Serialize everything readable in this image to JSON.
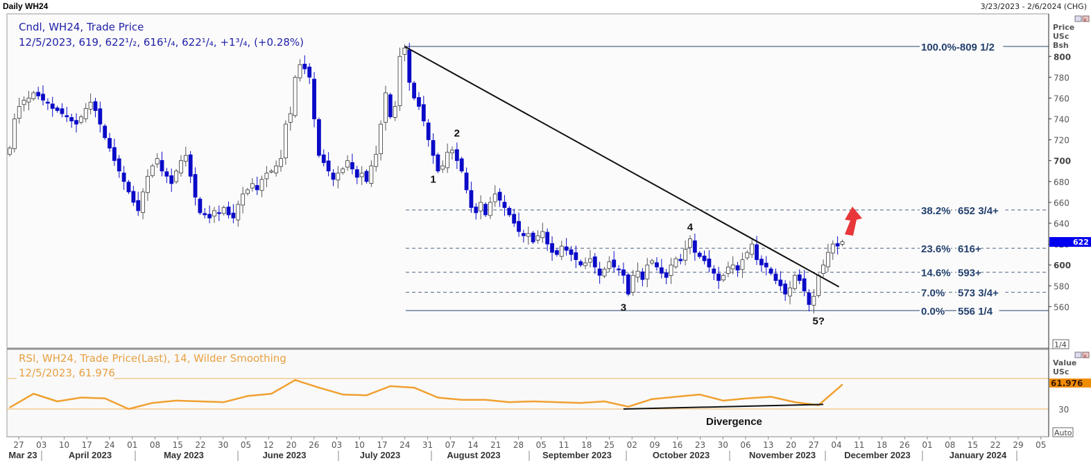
{
  "header": {
    "title": "Daily WH24",
    "range": "3/23/2023 - 2/6/2024 (CHG)"
  },
  "price_panel": {
    "legend_line1": "Cndl, WH24, Trade Price",
    "legend_line2": "12/5/2023, 619, 622¹/₂, 616¹/₄, 622¹/₄, +1³/₄, (+0.28%)",
    "axis_title": [
      "Price",
      "USc",
      "Bsh"
    ],
    "current_price_label": "622",
    "scale_button": "1/4",
    "colors": {
      "up_body": "#ffffff",
      "down_body": "#0a0ac8",
      "current_price": "#0000ee",
      "fib": "#23406e"
    }
  },
  "rsi_panel": {
    "legend_line1": "RSI, WH24, Trade Price(Last),  14, Wilder Smoothing",
    "legend_line2": "12/5/2023, 61.976",
    "axis_title": [
      "Value",
      "USc"
    ],
    "current_value_label": "61.976",
    "tick_30": "30",
    "auto_button": "Auto",
    "divergence_label": "Divergence",
    "colors": {
      "line": "#f0a030",
      "bands": "#f3c27a",
      "value_box": "#f08c00"
    }
  },
  "chart_data": [
    {
      "type": "candlestick",
      "title": "Cndl, WH24, Trade Price",
      "x_range": [
        "3/23/2023",
        "2/6/2024"
      ],
      "ylabel": "Price USc Bsh",
      "ylim": [
        540,
        815
      ],
      "y_ticks": [
        800,
        780,
        760,
        740,
        720,
        700,
        680,
        660,
        640,
        620,
        600,
        580,
        560
      ],
      "closes": [
        712,
        740,
        752,
        758,
        760,
        765,
        762,
        758,
        755,
        750,
        748,
        745,
        742,
        738,
        735,
        742,
        750,
        756,
        748,
        735,
        722,
        712,
        700,
        690,
        680,
        670,
        660,
        652,
        670,
        685,
        695,
        702,
        690,
        685,
        678,
        690,
        700,
        705,
        685,
        665,
        650,
        648,
        645,
        652,
        650,
        655,
        648,
        645,
        658,
        668,
        672,
        678,
        672,
        682,
        688,
        690,
        695,
        702,
        735,
        745,
        780,
        792,
        788,
        780,
        740,
        705,
        698,
        690,
        682,
        688,
        692,
        700,
        692,
        684,
        688,
        680,
        695,
        706,
        735,
        765,
        742,
        752,
        800,
        808,
        775,
        760,
        752,
        738,
        720,
        705,
        690,
        695,
        708,
        710,
        700,
        690,
        672,
        655,
        650,
        660,
        648,
        660,
        668,
        662,
        655,
        648,
        640,
        632,
        628,
        630,
        622,
        628,
        632,
        620,
        612,
        610,
        618,
        614,
        610,
        605,
        600,
        602,
        606,
        598,
        590,
        596,
        603,
        598,
        596,
        590,
        572,
        590,
        594,
        586,
        600,
        604,
        598,
        592,
        588,
        600,
        606,
        604,
        615,
        625,
        612,
        608,
        604,
        598,
        592,
        585,
        590,
        598,
        600,
        595,
        605,
        612,
        620,
        605,
        600,
        598,
        592,
        585,
        580,
        572,
        578,
        590,
        585,
        575,
        562,
        570,
        590,
        600,
        612,
        620,
        618,
        622.25
      ],
      "fibonacci": [
        {
          "pct": "100.0%",
          "label": "809 1/2",
          "value": 809.5,
          "style": "solid"
        },
        {
          "pct": "38.2%",
          "label": "652 3/4+",
          "value": 652.75,
          "style": "dashed"
        },
        {
          "pct": "23.6%",
          "label": "616+",
          "value": 616,
          "style": "dashed"
        },
        {
          "pct": "14.6%",
          "label": "593+",
          "value": 593,
          "style": "dashed"
        },
        {
          "pct": "7.0%",
          "label": "573 3/4+",
          "value": 573.75,
          "style": "dashed"
        },
        {
          "pct": "0.0%",
          "label": "556 1/4",
          "value": 556.25,
          "style": "solid"
        }
      ],
      "trendline": {
        "from": {
          "day": 83,
          "price": 809.5
        },
        "to": {
          "day": 174,
          "price": 579
        }
      },
      "wave_labels": [
        {
          "text": "1",
          "day": 89,
          "price": 679
        },
        {
          "text": "2",
          "day": 94,
          "price": 723
        },
        {
          "text": "3",
          "day": 129,
          "price": 556
        },
        {
          "text": "4",
          "day": 143,
          "price": 633
        },
        {
          "text": "5?",
          "day": 170,
          "price": 543
        }
      ],
      "annotation_arrow": {
        "color": "#e8373a",
        "direction": "up"
      }
    },
    {
      "type": "line",
      "title": "RSI, WH24, Trade Price(Last),  14, Wilder Smoothing",
      "ylim": [
        0,
        100
      ],
      "bands": [
        30,
        70
      ],
      "y_ticks": [
        30
      ],
      "sample_every_days": 5,
      "values": [
        32,
        50,
        40,
        45,
        44,
        30,
        38,
        41,
        40,
        39,
        47,
        50,
        68,
        58,
        49,
        48,
        60,
        58,
        45,
        42,
        42,
        39,
        40,
        39,
        38,
        40,
        33,
        43,
        46,
        49,
        41,
        44,
        46,
        39,
        35,
        61.976
      ],
      "divergence_line": {
        "from": {
          "day": 129,
          "value": 30
        },
        "to": {
          "day": 171,
          "value": 36
        }
      },
      "last_value": 61.976
    }
  ],
  "x_axis": {
    "ticks": [
      "27",
      "03",
      "10",
      "17",
      "24",
      "01",
      "08",
      "15",
      "22",
      "30",
      "05",
      "12",
      "20",
      "26",
      "03",
      "10",
      "17",
      "24",
      "31",
      "07",
      "14",
      "21",
      "28",
      "05",
      "11",
      "18",
      "25",
      "02",
      "09",
      "16",
      "23",
      "30",
      "06",
      "13",
      "20",
      "27",
      "04",
      "11",
      "18",
      "26",
      "01",
      "08",
      "15",
      "22",
      "29",
      "05"
    ],
    "months": [
      "Mar 23",
      "April 2023",
      "May 2023",
      "June 2023",
      "July 2023",
      "August 2023",
      "September 2023",
      "October 2023",
      "November 2023",
      "December 2023",
      "January 2024"
    ]
  }
}
